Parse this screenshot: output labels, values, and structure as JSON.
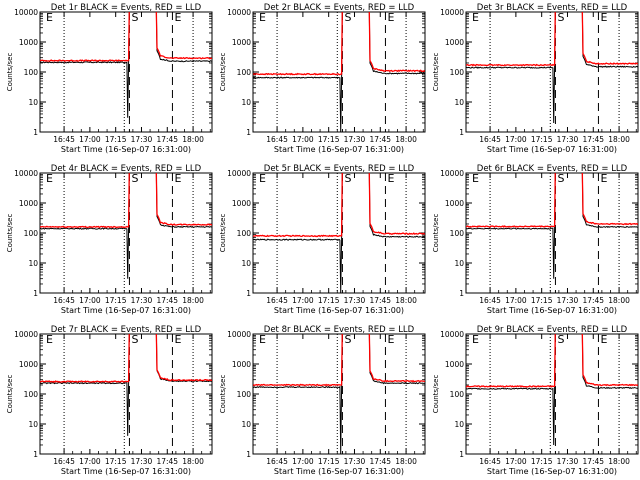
{
  "figure": {
    "start_time_label": "Start Time (16-Sep-07 16:31:00)"
  },
  "chart_data": [
    {
      "type": "line",
      "title": "Det 1r BLACK = Events, RED = LLD",
      "ylabel": "Counts/sec",
      "xlabel": "Start Time (16-Sep-07 16:31:00)",
      "yscale": "log",
      "ylim": [
        1,
        10000
      ],
      "xlim": [
        "16:31",
        "18:11"
      ],
      "grid": false,
      "x_ticks": [
        "16:45",
        "17:00",
        "17:15",
        "17:30",
        "17:45",
        "18:00"
      ],
      "y_ticks": [
        "1",
        "10",
        "100",
        "1000",
        "10000"
      ],
      "markers": [
        {
          "time": "16:31",
          "label": "E"
        },
        {
          "time": "17:23",
          "label": "S"
        },
        {
          "time": "17:48",
          "label": "E"
        }
      ],
      "saa_start": "17:23",
      "saa_end": "17:39",
      "event_dip_time": "17:22",
      "series": [
        {
          "name": "BLACK = Events",
          "color": "#000000",
          "level_before": 210,
          "level_after": 230,
          "dip_min": 3
        },
        {
          "name": "RED = LLD",
          "color": "#ff0000",
          "level_before": 240,
          "level_after": 290,
          "dip_min": null
        }
      ]
    },
    {
      "type": "line",
      "title": "Det 2r BLACK = Events, RED = LLD",
      "ylabel": "Counts/sec",
      "xlabel": "Start Time (16-Sep-07 16:31:00)",
      "yscale": "log",
      "ylim": [
        1,
        10000
      ],
      "xlim": [
        "16:31",
        "18:11"
      ],
      "grid": false,
      "x_ticks": [
        "16:45",
        "17:00",
        "17:15",
        "17:30",
        "17:45",
        "18:00"
      ],
      "y_ticks": [
        "1",
        "10",
        "100",
        "1000",
        "10000"
      ],
      "markers": [
        {
          "time": "16:31",
          "label": "E"
        },
        {
          "time": "17:23",
          "label": "S"
        },
        {
          "time": "17:48",
          "label": "E"
        }
      ],
      "saa_start": "17:23",
      "saa_end": "17:39",
      "event_dip_time": "17:22",
      "series": [
        {
          "name": "BLACK = Events",
          "color": "#000000",
          "level_before": 65,
          "level_after": 90,
          "dip_min": 1
        },
        {
          "name": "RED = LLD",
          "color": "#ff0000",
          "level_before": 85,
          "level_after": 110,
          "dip_min": null
        }
      ]
    },
    {
      "type": "line",
      "title": "Det 3r BLACK = Events, RED = LLD",
      "ylabel": "Counts/sec",
      "xlabel": "Start Time (16-Sep-07 16:31:00)",
      "yscale": "log",
      "ylim": [
        1,
        10000
      ],
      "xlim": [
        "16:31",
        "18:11"
      ],
      "grid": false,
      "x_ticks": [
        "16:45",
        "17:00",
        "17:15",
        "17:30",
        "17:45",
        "18:00"
      ],
      "y_ticks": [
        "1",
        "10",
        "100",
        "1000",
        "10000"
      ],
      "markers": [
        {
          "time": "16:31",
          "label": "E"
        },
        {
          "time": "17:23",
          "label": "S"
        },
        {
          "time": "17:48",
          "label": "E"
        }
      ],
      "saa_start": "17:23",
      "saa_end": "17:39",
      "event_dip_time": "17:22",
      "series": [
        {
          "name": "BLACK = Events",
          "color": "#000000",
          "level_before": 140,
          "level_after": 150,
          "dip_min": 2
        },
        {
          "name": "RED = LLD",
          "color": "#ff0000",
          "level_before": 170,
          "level_after": 190,
          "dip_min": null
        }
      ]
    },
    {
      "type": "line",
      "title": "Det 4r BLACK = Events, RED = LLD",
      "ylabel": "Counts/sec",
      "xlabel": "Start Time (16-Sep-07 16:31:00)",
      "yscale": "log",
      "ylim": [
        1,
        10000
      ],
      "xlim": [
        "16:31",
        "18:11"
      ],
      "grid": false,
      "x_ticks": [
        "16:45",
        "17:00",
        "17:15",
        "17:30",
        "17:45",
        "18:00"
      ],
      "y_ticks": [
        "1",
        "10",
        "100",
        "1000",
        "10000"
      ],
      "markers": [
        {
          "time": "16:31",
          "label": "E"
        },
        {
          "time": "17:23",
          "label": "S"
        },
        {
          "time": "17:48",
          "label": "E"
        }
      ],
      "saa_start": "17:23",
      "saa_end": "17:39",
      "event_dip_time": "17:22",
      "series": [
        {
          "name": "BLACK = Events",
          "color": "#000000",
          "level_before": 140,
          "level_after": 160,
          "dip_min": 3
        },
        {
          "name": "RED = LLD",
          "color": "#ff0000",
          "level_before": 160,
          "level_after": 190,
          "dip_min": null
        }
      ]
    },
    {
      "type": "line",
      "title": "Det 5r BLACK = Events, RED = LLD",
      "ylabel": "Counts/sec",
      "xlabel": "Start Time (16-Sep-07 16:31:00)",
      "yscale": "log",
      "ylim": [
        1,
        10000
      ],
      "xlim": [
        "16:31",
        "18:11"
      ],
      "grid": false,
      "x_ticks": [
        "16:45",
        "17:00",
        "17:15",
        "17:30",
        "17:45",
        "18:00"
      ],
      "y_ticks": [
        "1",
        "10",
        "100",
        "1000",
        "10000"
      ],
      "markers": [
        {
          "time": "16:31",
          "label": "E"
        },
        {
          "time": "17:23",
          "label": "S"
        },
        {
          "time": "17:48",
          "label": "E"
        }
      ],
      "saa_start": "17:23",
      "saa_end": "17:39",
      "event_dip_time": "17:22",
      "series": [
        {
          "name": "BLACK = Events",
          "color": "#000000",
          "level_before": 60,
          "level_after": 75,
          "dip_min": 1
        },
        {
          "name": "RED = LLD",
          "color": "#ff0000",
          "level_before": 80,
          "level_after": 95,
          "dip_min": null
        }
      ]
    },
    {
      "type": "line",
      "title": "Det 6r BLACK = Events, RED = LLD",
      "ylabel": "Counts/sec",
      "xlabel": "Start Time (16-Sep-07 16:31:00)",
      "yscale": "log",
      "ylim": [
        1,
        10000
      ],
      "xlim": [
        "16:31",
        "18:11"
      ],
      "grid": false,
      "x_ticks": [
        "16:45",
        "17:00",
        "17:15",
        "17:30",
        "17:45",
        "18:00"
      ],
      "y_ticks": [
        "1",
        "10",
        "100",
        "1000",
        "10000"
      ],
      "markers": [
        {
          "time": "16:31",
          "label": "E"
        },
        {
          "time": "17:23",
          "label": "S"
        },
        {
          "time": "17:48",
          "label": "E"
        }
      ],
      "saa_start": "17:23",
      "saa_end": "17:39",
      "event_dip_time": "17:22",
      "series": [
        {
          "name": "BLACK = Events",
          "color": "#000000",
          "level_before": 140,
          "level_after": 160,
          "dip_min": 3
        },
        {
          "name": "RED = LLD",
          "color": "#ff0000",
          "level_before": 165,
          "level_after": 200,
          "dip_min": null
        }
      ]
    },
    {
      "type": "line",
      "title": "Det 7r BLACK = Events, RED = LLD",
      "ylabel": "Counts/sec",
      "xlabel": "Start Time (16-Sep-07 16:31:00)",
      "yscale": "log",
      "ylim": [
        1,
        10000
      ],
      "xlim": [
        "16:31",
        "18:11"
      ],
      "grid": false,
      "x_ticks": [
        "16:45",
        "17:00",
        "17:15",
        "17:30",
        "17:45",
        "18:00"
      ],
      "y_ticks": [
        "1",
        "10",
        "100",
        "1000",
        "10000"
      ],
      "markers": [
        {
          "time": "16:31",
          "label": "E"
        },
        {
          "time": "17:23",
          "label": "S"
        },
        {
          "time": "17:48",
          "label": "E"
        }
      ],
      "saa_start": "17:23",
      "saa_end": "17:39",
      "event_dip_time": "17:22",
      "series": [
        {
          "name": "BLACK = Events",
          "color": "#000000",
          "level_before": 230,
          "level_after": 270,
          "dip_min": 4
        },
        {
          "name": "RED = LLD",
          "color": "#ff0000",
          "level_before": 260,
          "level_after": 290,
          "dip_min": null
        }
      ]
    },
    {
      "type": "line",
      "title": "Det 8r BLACK = Events, RED = LLD",
      "ylabel": "Counts/sec",
      "xlabel": "Start Time (16-Sep-07 16:31:00)",
      "yscale": "log",
      "ylim": [
        1,
        10000
      ],
      "xlim": [
        "16:31",
        "18:11"
      ],
      "grid": false,
      "x_ticks": [
        "16:45",
        "17:00",
        "17:15",
        "17:30",
        "17:45",
        "18:00"
      ],
      "y_ticks": [
        "1",
        "10",
        "100",
        "1000",
        "10000"
      ],
      "markers": [
        {
          "time": "16:31",
          "label": "E"
        },
        {
          "time": "17:23",
          "label": "S"
        },
        {
          "time": "17:48",
          "label": "E"
        }
      ],
      "saa_start": "17:23",
      "saa_end": "17:39",
      "event_dip_time": "17:22",
      "series": [
        {
          "name": "BLACK = Events",
          "color": "#000000",
          "level_before": 170,
          "level_after": 230,
          "dip_min": 1
        },
        {
          "name": "RED = LLD",
          "color": "#ff0000",
          "level_before": 200,
          "level_after": 270,
          "dip_min": null
        }
      ]
    },
    {
      "type": "line",
      "title": "Det 9r BLACK = Events, RED = LLD",
      "ylabel": "Counts/sec",
      "xlabel": "Start Time (16-Sep-07 16:31:00)",
      "yscale": "log",
      "ylim": [
        1,
        10000
      ],
      "xlim": [
        "16:31",
        "18:11"
      ],
      "grid": false,
      "x_ticks": [
        "16:45",
        "17:00",
        "17:15",
        "17:30",
        "17:45",
        "18:00"
      ],
      "y_ticks": [
        "1",
        "10",
        "100",
        "1000",
        "10000"
      ],
      "markers": [
        {
          "time": "16:31",
          "label": "E"
        },
        {
          "time": "17:23",
          "label": "S"
        },
        {
          "time": "17:48",
          "label": "E"
        }
      ],
      "saa_start": "17:23",
      "saa_end": "17:39",
      "event_dip_time": "17:22",
      "series": [
        {
          "name": "BLACK = Events",
          "color": "#000000",
          "level_before": 150,
          "level_after": 160,
          "dip_min": 2
        },
        {
          "name": "RED = LLD",
          "color": "#ff0000",
          "level_before": 180,
          "level_after": 200,
          "dip_min": null
        }
      ]
    }
  ]
}
